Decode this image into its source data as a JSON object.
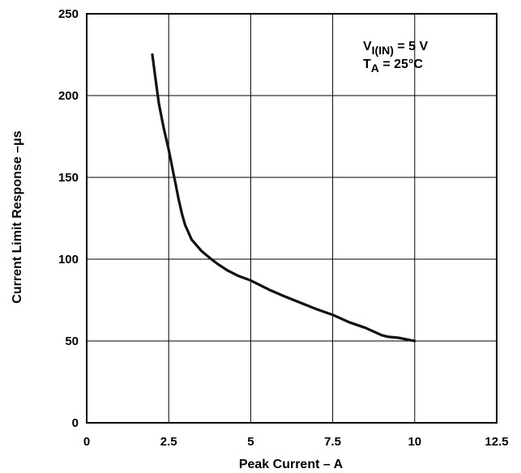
{
  "chart_data": {
    "type": "line",
    "xlabel": "Peak Current – A",
    "ylabel": "Current Limit Response –μs",
    "xlim": [
      0,
      12.5
    ],
    "ylim": [
      0,
      250
    ],
    "x_ticks": [
      "0",
      "2.5",
      "5",
      "7.5",
      "10",
      "12.5"
    ],
    "y_ticks": [
      "0",
      "50",
      "100",
      "150",
      "200",
      "250"
    ],
    "grid": true,
    "annotations": {
      "line1": {
        "main": "V",
        "sub": "I(IN)",
        "rest": " = 5 V"
      },
      "line2": {
        "main": "T",
        "sub": "A",
        "rest": " = 25°C"
      }
    },
    "series": [
      {
        "x": [
          2.0,
          2.1,
          2.2,
          2.35,
          2.5,
          2.6,
          2.7,
          2.8,
          2.9,
          3.0,
          3.2,
          3.5,
          3.8,
          4.0,
          4.3,
          4.6,
          5.0,
          5.3,
          5.6,
          6.0,
          6.5,
          7.0,
          7.5,
          8.0,
          8.5,
          9.0,
          9.2,
          9.5,
          10.0
        ],
        "y": [
          225,
          210,
          195,
          180,
          167,
          157,
          147,
          137,
          128,
          121,
          112,
          105,
          100,
          97,
          93,
          90,
          87,
          84,
          81,
          77.5,
          73.5,
          69.5,
          66,
          61.5,
          58,
          53.5,
          52.5,
          52,
          50
        ]
      }
    ]
  }
}
